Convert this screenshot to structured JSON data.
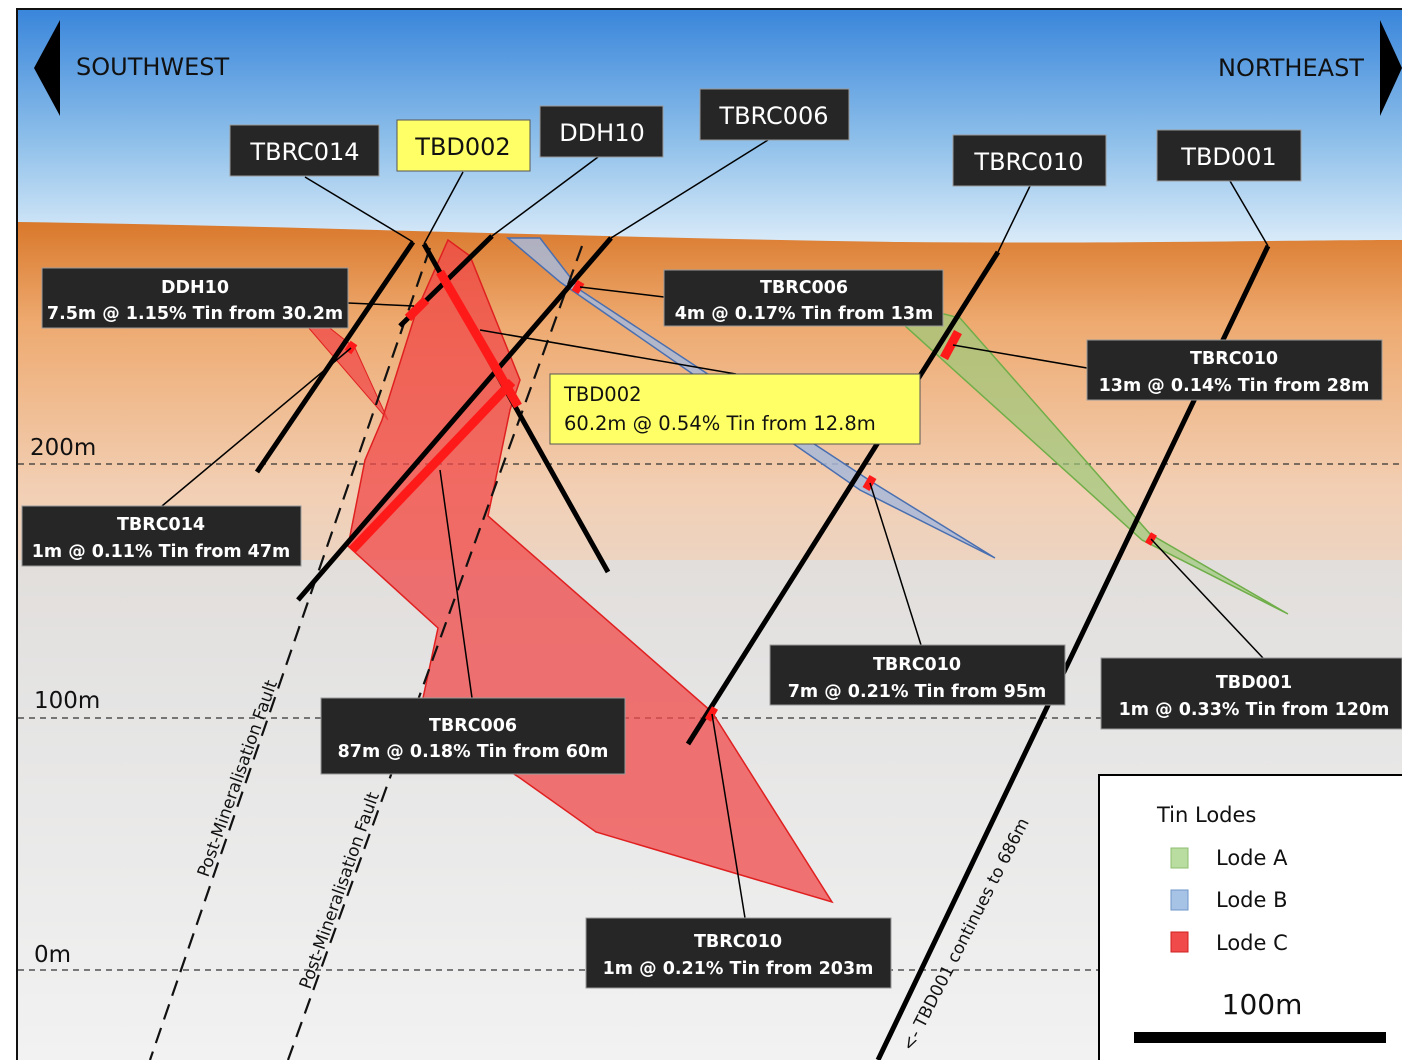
{
  "directions": {
    "left": "SOUTHWEST",
    "right": "NORTHEAST"
  },
  "elevations": [
    "200m",
    "100m",
    "0m"
  ],
  "drill_holes": [
    "TBRC014",
    "TBD002",
    "DDH10",
    "TBRC006",
    "TBRC010",
    "TBD001"
  ],
  "intercepts": [
    {
      "hole": "DDH10",
      "text": "7.5m @ 1.15% Tin from 30.2m"
    },
    {
      "hole": "TBRC006",
      "text": "4m @ 0.17% Tin from 13m"
    },
    {
      "hole": "TBRC010",
      "text": "13m @ 0.14% Tin from 28m"
    },
    {
      "hole": "TBD002",
      "text": "60.2m @ 0.54% Tin from 12.8m"
    },
    {
      "hole": "TBRC014",
      "text": "1m @ 0.11% Tin from 47m"
    },
    {
      "hole": "TBRC010",
      "text": "7m @ 0.21% Tin from 95m"
    },
    {
      "hole": "TBD001",
      "text": "1m @ 0.33% Tin from 120m"
    },
    {
      "hole": "TBRC006",
      "text": "87m @ 0.18% Tin from 60m"
    },
    {
      "hole": "TBRC010",
      "text": "1m @ 0.21% Tin from 203m"
    }
  ],
  "faults": [
    "Post-Mineralisation Fault",
    "Post-Mineralisation Fault"
  ],
  "hole_note": "<- TBD001 continues to 686m",
  "legend": {
    "title": "Tin Lodes",
    "items": [
      {
        "label": "Lode A",
        "color": "#b9dca0"
      },
      {
        "label": "Lode B",
        "color": "#a6c3e6"
      },
      {
        "label": "Lode C",
        "color": "#f04a4a"
      }
    ],
    "scale": "100m"
  },
  "colors": {
    "lode_a": "#9cc97a",
    "lode_b": "#a8b8d8",
    "lode_c": "#f04848",
    "intercept": "#ff1a1a",
    "highlight": "#ffff66"
  }
}
